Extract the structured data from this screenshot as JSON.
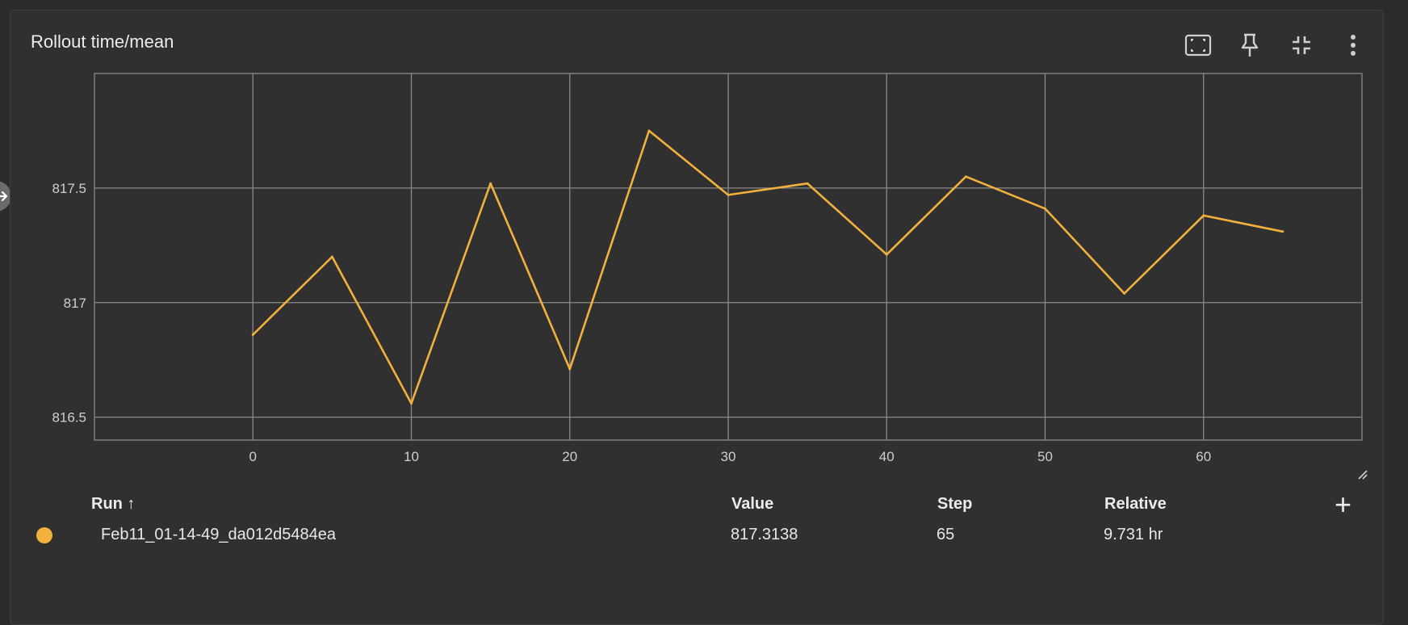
{
  "card": {
    "title": "Rollout time/mean",
    "toolbar": [
      {
        "name": "fullscreen-icon",
        "label": "Fit domain"
      },
      {
        "name": "pin-icon",
        "label": "Pin"
      },
      {
        "name": "collapse-icon",
        "label": "Collapse"
      },
      {
        "name": "more-vert-icon",
        "label": "More"
      }
    ]
  },
  "chart_data": {
    "type": "line",
    "title": "Rollout time/mean",
    "xlabel": "",
    "ylabel": "",
    "xlim": [
      -10,
      70
    ],
    "ylim": [
      816.4,
      818.0
    ],
    "x_ticks": [
      0,
      10,
      20,
      30,
      40,
      50,
      60
    ],
    "y_ticks": [
      816.5,
      817,
      817.5
    ],
    "y_tick_labels": [
      "816.5",
      "817",
      "817.5"
    ],
    "grid": true,
    "series": [
      {
        "color": "#f2b13c",
        "x": [
          0,
          5,
          10,
          15,
          20,
          25,
          30,
          35,
          40,
          45,
          50,
          55,
          60,
          65
        ],
        "values": [
          816.86,
          817.2,
          816.56,
          817.52,
          816.71,
          817.75,
          817.47,
          817.52,
          817.21,
          817.55,
          817.41,
          817.04,
          817.38,
          817.31
        ]
      }
    ]
  },
  "table": {
    "headers": {
      "run": "Run ↑",
      "value": "Value",
      "step": "Step",
      "relative": "Relative"
    },
    "rows": [
      {
        "color": "#f2b13c",
        "run": "Feb11_01-14-49_da012d5484ea",
        "value": "817.3138",
        "step": "65",
        "relative": "9.731 hr"
      }
    ]
  }
}
